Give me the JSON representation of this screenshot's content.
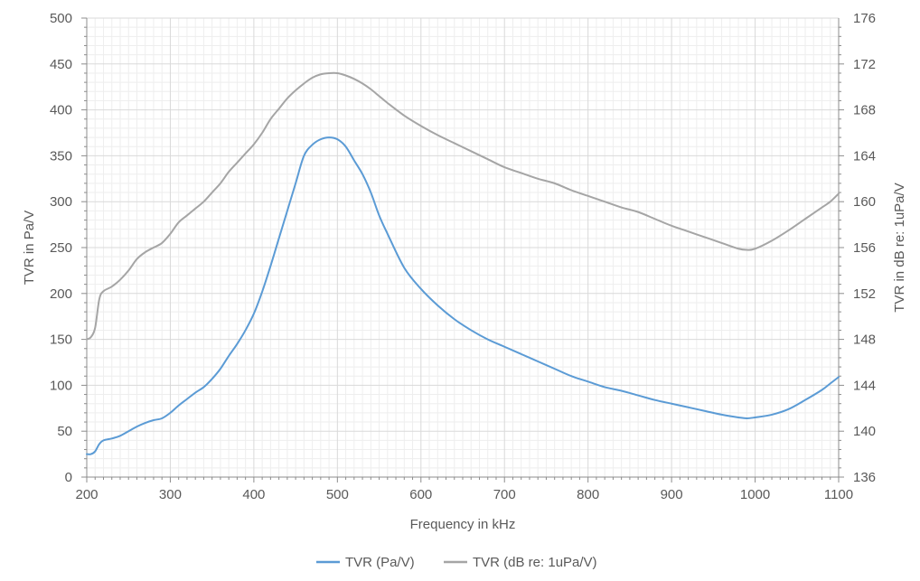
{
  "chart_data": {
    "type": "line",
    "title": "",
    "xlabel": "Frequency in kHz",
    "ylabel": "TVR in Pa/V",
    "ylabel_right": "TVR in dB re: 1uPa/V",
    "xlim": [
      200,
      1100
    ],
    "ylim": [
      0,
      500
    ],
    "ylim_right": [
      136,
      176
    ],
    "x_ticks": [
      200,
      300,
      400,
      500,
      600,
      700,
      800,
      900,
      1000,
      1100
    ],
    "y_ticks": [
      0,
      50,
      100,
      150,
      200,
      250,
      300,
      350,
      400,
      450,
      500
    ],
    "y_ticks_right": [
      136,
      140,
      144,
      148,
      152,
      156,
      160,
      164,
      168,
      172,
      176
    ],
    "grid": true,
    "legend_position": "bottom",
    "series": [
      {
        "name": "TVR (Pa/V)",
        "axis": "left",
        "color": "#5b9bd5",
        "x": [
          200,
          205,
          210,
          215,
          220,
          230,
          240,
          250,
          260,
          270,
          280,
          290,
          300,
          310,
          320,
          330,
          340,
          350,
          360,
          370,
          380,
          390,
          400,
          410,
          420,
          430,
          440,
          450,
          460,
          470,
          480,
          490,
          500,
          510,
          520,
          530,
          540,
          550,
          560,
          580,
          600,
          620,
          640,
          660,
          680,
          700,
          720,
          740,
          760,
          780,
          800,
          820,
          840,
          860,
          880,
          900,
          920,
          940,
          960,
          980,
          990,
          1000,
          1020,
          1040,
          1060,
          1080,
          1090,
          1100
        ],
        "values": [
          25,
          25,
          28,
          36,
          40,
          42,
          45,
          50,
          55,
          59,
          62,
          64,
          70,
          78,
          85,
          92,
          98,
          107,
          118,
          132,
          145,
          160,
          178,
          202,
          230,
          260,
          290,
          320,
          350,
          362,
          368,
          370,
          368,
          360,
          345,
          330,
          310,
          285,
          265,
          228,
          205,
          187,
          172,
          160,
          150,
          142,
          134,
          126,
          118,
          110,
          104,
          98,
          94,
          89,
          84,
          80,
          76,
          72,
          68,
          65,
          64,
          65,
          68,
          74,
          84,
          95,
          102,
          109
        ]
      },
      {
        "name": "TVR (dB re: 1uPa/V)",
        "axis": "right",
        "color": "#a5a5a5",
        "x": [
          200,
          205,
          210,
          215,
          220,
          230,
          240,
          250,
          260,
          270,
          280,
          290,
          300,
          310,
          320,
          330,
          340,
          350,
          360,
          370,
          380,
          390,
          400,
          410,
          420,
          430,
          440,
          450,
          460,
          470,
          480,
          490,
          500,
          510,
          520,
          530,
          540,
          550,
          560,
          580,
          600,
          620,
          640,
          660,
          680,
          700,
          720,
          740,
          760,
          780,
          800,
          820,
          840,
          860,
          880,
          900,
          920,
          940,
          960,
          980,
          990,
          1000,
          1020,
          1040,
          1060,
          1080,
          1090,
          1100
        ],
        "values": [
          148,
          148.2,
          149,
          151.5,
          152.2,
          152.6,
          153.2,
          154,
          155,
          155.6,
          156,
          156.4,
          157.2,
          158.2,
          158.8,
          159.4,
          160,
          160.8,
          161.6,
          162.6,
          163.4,
          164.2,
          165,
          166,
          167.2,
          168.1,
          169,
          169.7,
          170.3,
          170.8,
          171.1,
          171.2,
          171.2,
          171,
          170.7,
          170.3,
          169.8,
          169.2,
          168.6,
          167.5,
          166.6,
          165.8,
          165.1,
          164.4,
          163.7,
          163,
          162.5,
          162,
          161.6,
          161,
          160.5,
          160,
          159.5,
          159.1,
          158.5,
          157.9,
          157.4,
          156.9,
          156.4,
          155.9,
          155.8,
          155.9,
          156.6,
          157.5,
          158.5,
          159.5,
          160,
          160.7
        ]
      }
    ]
  }
}
